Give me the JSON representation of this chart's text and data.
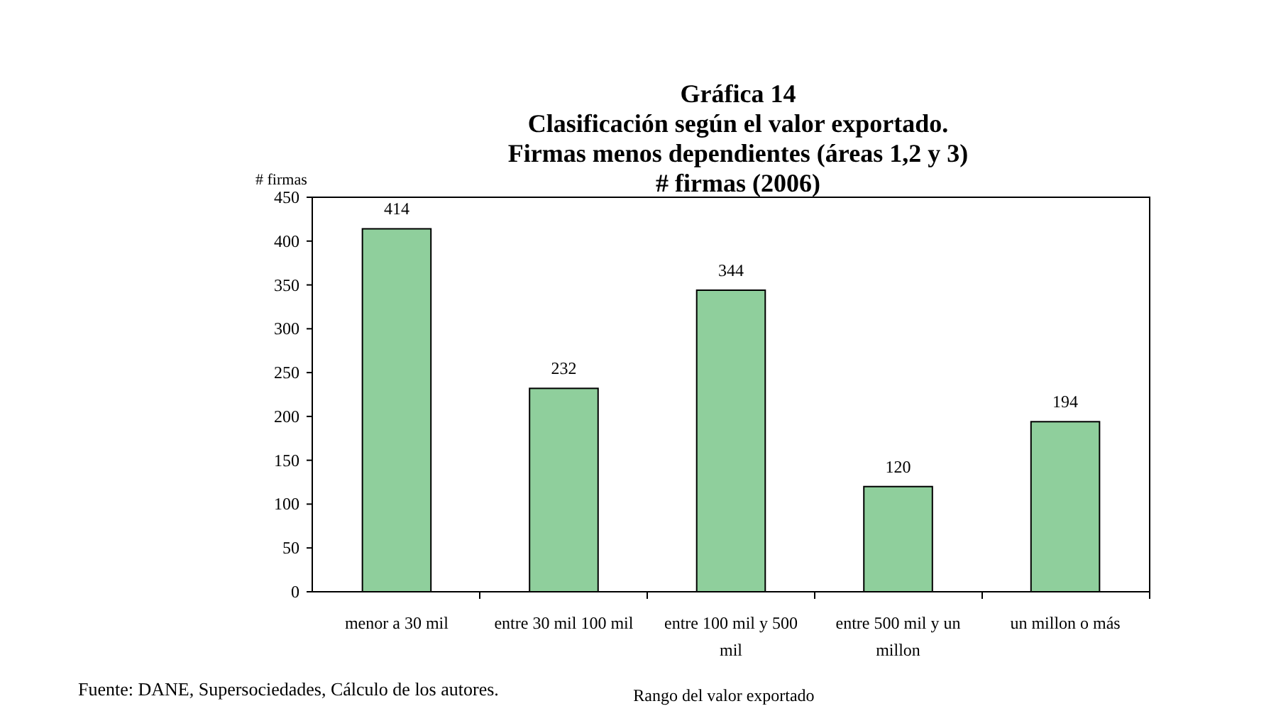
{
  "chart_data": {
    "type": "bar",
    "title": "Gráfica 14\nClasificación según el valor exportado.\nFirmas menos dependientes (áreas 1,2 y 3)\n# firmas (2006)",
    "ylabel": "# firmas",
    "xlabel": "Rango del valor exportado",
    "categories": [
      "menor a 30 mil",
      "entre 30 mil 100 mil",
      "entre  100 mil y 500 mil",
      "entre 500 mil y un millon",
      "un millon o más"
    ],
    "values": [
      414,
      232,
      344,
      120,
      194
    ],
    "color": "#8fcf9c",
    "ylim": [
      0,
      450
    ],
    "yticks": [
      0,
      50,
      100,
      150,
      200,
      250,
      300,
      350,
      400,
      450
    ],
    "data_labels": true,
    "grid": false,
    "annotations": [
      "Fuente: DANE, Supersociedades, Cálculo de los autores."
    ]
  }
}
